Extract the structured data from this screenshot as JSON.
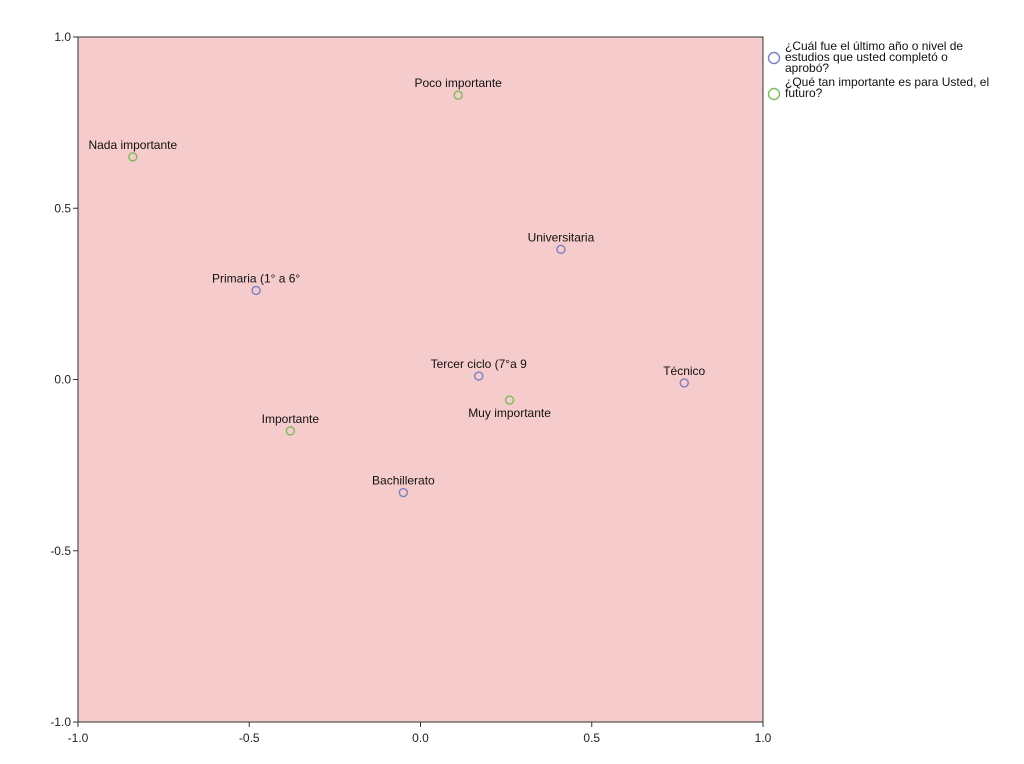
{
  "chart_data": {
    "type": "scatter",
    "title": "",
    "xlabel": "",
    "ylabel": "",
    "xlim": [
      -1.0,
      1.0
    ],
    "ylim": [
      -1.0,
      1.0
    ],
    "x_ticks": [
      "-1.0",
      "-0.5",
      "0.0",
      "0.5",
      "1.0"
    ],
    "y_ticks": [
      "1.0",
      "0.5",
      "0.0",
      "-0.5",
      "-1.0"
    ],
    "grid": false,
    "background_color": "#f6cbcc",
    "legend_position": "right",
    "series": [
      {
        "name": "¿Cuál fue el último año o nivel de estudios que usted completó o aprobó?",
        "color": "#7b7fc4",
        "points": [
          {
            "label": "Primaria (1° a 6°",
            "x": -0.48,
            "y": 0.26
          },
          {
            "label": "Universitaria",
            "x": 0.41,
            "y": 0.38
          },
          {
            "label": "Tercer ciclo (7°a 9",
            "x": 0.17,
            "y": 0.01
          },
          {
            "label": "Técnico",
            "x": 0.77,
            "y": -0.01
          },
          {
            "label": "Bachillerato",
            "x": -0.05,
            "y": -0.33
          }
        ]
      },
      {
        "name": "¿Qué tan importante es para Usted, el futuro?",
        "color": "#7dbb5c",
        "points": [
          {
            "label": "Poco importante",
            "x": 0.11,
            "y": 0.83
          },
          {
            "label": "Nada importante",
            "x": -0.84,
            "y": 0.65
          },
          {
            "label": "Importante",
            "x": -0.38,
            "y": -0.15
          },
          {
            "label": "Muy importante",
            "x": 0.26,
            "y": -0.06
          }
        ]
      }
    ],
    "legend_lines": [
      [
        "¿Cuál fue el último año o nivel de",
        "estudios que usted completó o",
        "aprobó?"
      ],
      [
        "¿Qué tan importante es para Usted, el",
        "futuro?"
      ]
    ]
  }
}
